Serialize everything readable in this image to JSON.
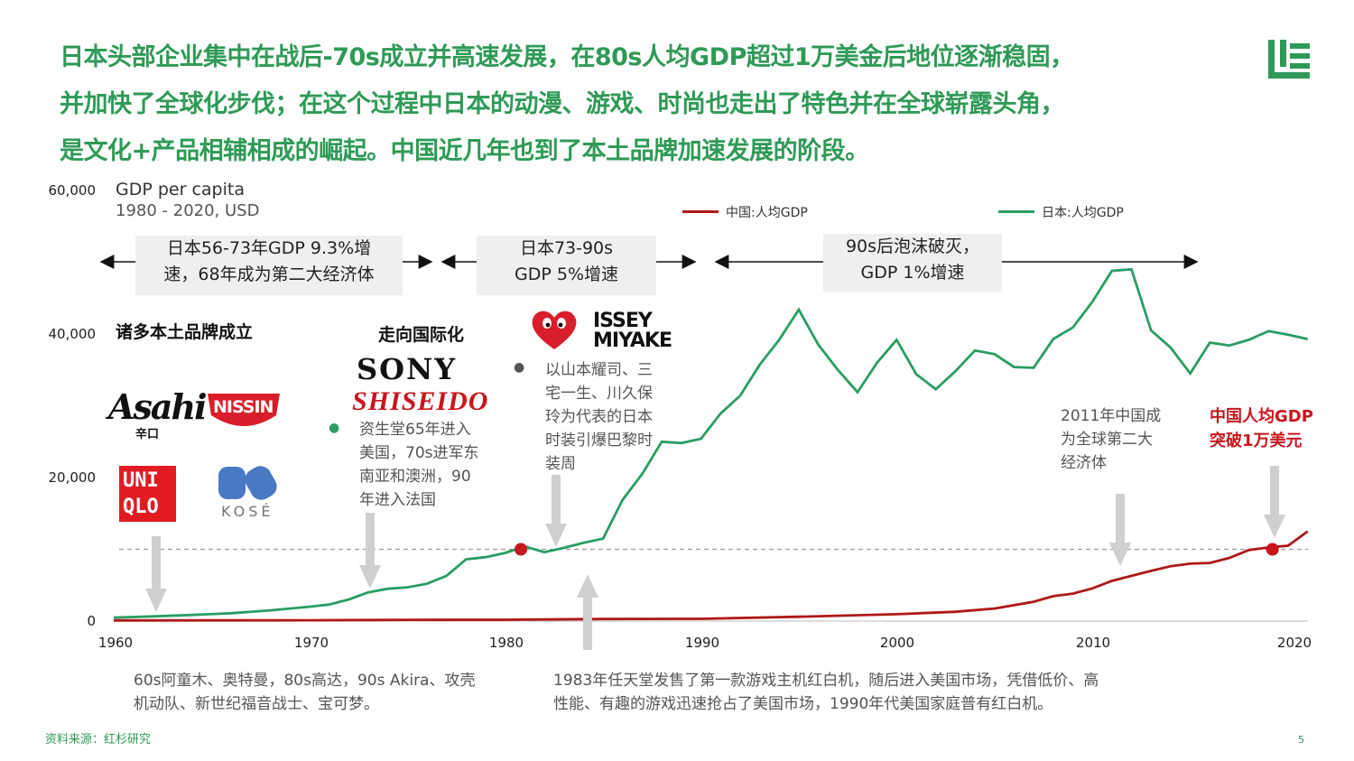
{
  "headline": {
    "lines": [
      "日本头部企业集中在战后-70s成立并高速发展，在80s人均GDP超过1万美金后地位逐渐稳固，",
      "并加快了全球化步伐；在这个过程中日本的动漫、游戏、时尚也走出了特色并在全球崭露头角，",
      "是文化+产品相辅相成的崛起。中国近几年也到了本土品牌加速发展的阶段。"
    ]
  },
  "chart_data": {
    "type": "line",
    "title": "GDP per capita",
    "subtitle": "1980 - 2020, USD",
    "xlabel": "",
    "ylabel": "",
    "xlim": [
      1960,
      2020
    ],
    "ylim": [
      0,
      60000
    ],
    "y_ticks": [
      "60,000",
      "40,000",
      "20,000",
      "0"
    ],
    "y_tick_values": [
      60000,
      40000,
      20000,
      0
    ],
    "x_ticks": [
      "1960",
      "1970",
      "1980",
      "1990",
      "2000",
      "2010",
      "2020"
    ],
    "x_tick_values": [
      1960,
      1970,
      1980,
      1990,
      2000,
      2010,
      2020
    ],
    "reference_line": 10000,
    "legend_position": "top-right",
    "series": [
      {
        "name": "中国:人均GDP",
        "color": "#b01818",
        "x": [
          1960,
          1965,
          1970,
          1975,
          1980,
          1985,
          1990,
          1995,
          2000,
          2003,
          2005,
          2007,
          2008,
          2009,
          2010,
          2011,
          2012,
          2013,
          2014,
          2015,
          2016,
          2017,
          2018,
          2019,
          2020,
          2021
        ],
        "y": [
          90,
          100,
          110,
          180,
          190,
          290,
          320,
          610,
          960,
          1290,
          1750,
          2690,
          3470,
          3830,
          4550,
          5600,
          6300,
          7000,
          7650,
          8000,
          8100,
          8800,
          9900,
          10260,
          10500,
          12500
        ]
      },
      {
        "name": "日本:人均GDP",
        "color": "#2a9d63",
        "x": [
          1960,
          1962,
          1964,
          1966,
          1968,
          1970,
          1971,
          1972,
          1973,
          1974,
          1975,
          1976,
          1977,
          1978,
          1979,
          1980,
          1981,
          1982,
          1983,
          1984,
          1985,
          1986,
          1987,
          1988,
          1989,
          1990,
          1991,
          1992,
          1993,
          1994,
          1995,
          1996,
          1997,
          1998,
          1999,
          2000,
          2001,
          2002,
          2003,
          2004,
          2005,
          2006,
          2007,
          2008,
          2009,
          2010,
          2011,
          2012,
          2013,
          2014,
          2015,
          2016,
          2017,
          2018,
          2019,
          2020,
          2021
        ],
        "y": [
          480,
          650,
          850,
          1100,
          1500,
          2000,
          2300,
          3000,
          4000,
          4500,
          4700,
          5200,
          6300,
          8600,
          8900,
          9500,
          10400,
          9600,
          10200,
          10900,
          11500,
          16900,
          20500,
          25000,
          24800,
          25400,
          28900,
          31400,
          35700,
          39200,
          43400,
          38500,
          35000,
          31900,
          36000,
          39200,
          34400,
          32300,
          34800,
          37700,
          37200,
          35400,
          35300,
          39300,
          40900,
          44500,
          48800,
          49000,
          40500,
          38100,
          34500,
          38800,
          38400,
          39200,
          40400,
          39900,
          39300
        ]
      }
    ],
    "markers": [
      {
        "series": "日本:人均GDP",
        "x": 1980.8,
        "y": 10000,
        "color": "#c8161d"
      },
      {
        "series": "中国:人均GDP",
        "x": 2019.2,
        "y": 10000,
        "color": "#c8161d"
      }
    ]
  },
  "eras": [
    {
      "text_line1": "日本56-73年GDP 9.3%增",
      "text_line2": "速，68年成为第二大经济体"
    },
    {
      "text_line1": "日本73-90s",
      "text_line2": "GDP 5%增速"
    },
    {
      "text_line1": "90s后泡沫破灭，",
      "text_line2": "GDP 1%增速"
    }
  ],
  "annotations": {
    "brands_heading": "诸多本土品牌成立",
    "intl_heading": "走向国际化",
    "shiseido_note": [
      "资生堂65年进入",
      "美国，70s进军东",
      "南亚和澳洲，90",
      "年进入法国"
    ],
    "fashion_note": [
      "以山本耀司、三",
      "宅一生、川久保",
      "玲为代表的日本",
      "时装引爆巴黎时",
      "装周"
    ],
    "china_2011": [
      "2011年中国成",
      "为全球第二大",
      "经济体"
    ],
    "china_10k": [
      "中国人均GDP",
      "突破1万美元"
    ]
  },
  "logos": {
    "asahi": "Asahi",
    "asahi_sub": "辛口",
    "nissin": "NISSIN",
    "uniqlo_top": "UNI",
    "uniqlo_bottom": "QLO",
    "kose": "KOSÉ",
    "sony": "SONY",
    "shiseido": "SHISEIDO",
    "issey_1": "ISSEY",
    "issey_2": "MIYAKE"
  },
  "footnotes": {
    "anime": [
      "60s阿童木、奥特曼，80s高达，90s Akira、攻壳",
      "机动队、新世纪福音战士、宝可梦。"
    ],
    "nintendo": [
      "1983年任天堂发售了第一款游戏主机红白机，随后进入美国市场，凭借低价、高",
      "性能、有趣的游戏迅速抢占了美国市场，1990年代美国家庭普有红白机。"
    ]
  },
  "source": "资料来源：红杉研究",
  "page_number": "5",
  "colors": {
    "brand_green": "#2f9a57",
    "japan_line": "#2a9d63",
    "china_line": "#b01818",
    "highlight_red": "#c8161d",
    "era_box": "#efefef",
    "arrow_gray": "#cfcfcf"
  }
}
